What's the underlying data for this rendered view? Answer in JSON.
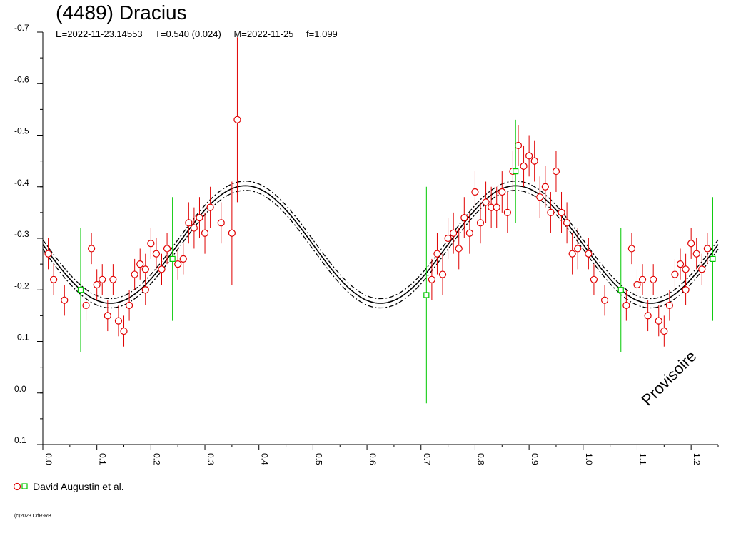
{
  "title": "(4489) Dracius",
  "params": {
    "epoch": "E=2022-11-23.14553",
    "period": "T=0.540 (0.024)",
    "mid": "M=2022-11-25",
    "factor": "f=1.099"
  },
  "stamp": "Provisoire",
  "legend": {
    "label": "David Augustin et al."
  },
  "copyright": "(c)2023 CdR-RB",
  "colors": {
    "red": "#e00000",
    "green": "#00c800",
    "curve": "#000000"
  },
  "chart_data": {
    "type": "scatter",
    "x_ticks": [
      "0.0",
      "0.1",
      "0.2",
      "0.3",
      "0.4",
      "0.5",
      "0.6",
      "0.7",
      "0.8",
      "0.9",
      "1.0",
      "1.1",
      "1.2"
    ],
    "y_ticks": [
      "-0.7",
      "-0.6",
      "-0.5",
      "-0.4",
      "-0.3",
      "-0.2",
      "-0.1",
      "0.0",
      "0.1"
    ],
    "xlim": [
      0.0,
      1.25
    ],
    "ylim": [
      0.1,
      -0.7
    ],
    "y_inverted": true,
    "fit": {
      "mean": -0.288,
      "amplitude": 0.114,
      "dashed_offset": 0.009,
      "peak_phase": 0.375,
      "period_phase": 0.5
    },
    "series": [
      {
        "name": "David Augustin et al.",
        "marker": "circle",
        "color": "red",
        "points": [
          [
            0.01,
            -0.27,
            0.03
          ],
          [
            0.02,
            -0.22,
            0.03
          ],
          [
            0.04,
            -0.18,
            0.03
          ],
          [
            0.08,
            -0.17,
            0.03
          ],
          [
            0.09,
            -0.28,
            0.03
          ],
          [
            0.1,
            -0.21,
            0.03
          ],
          [
            0.11,
            -0.22,
            0.03
          ],
          [
            0.12,
            -0.15,
            0.03
          ],
          [
            0.13,
            -0.22,
            0.03
          ],
          [
            0.14,
            -0.14,
            0.03
          ],
          [
            0.15,
            -0.12,
            0.03
          ],
          [
            0.16,
            -0.17,
            0.03
          ],
          [
            0.17,
            -0.23,
            0.03
          ],
          [
            0.18,
            -0.25,
            0.03
          ],
          [
            0.19,
            -0.24,
            0.03
          ],
          [
            0.19,
            -0.2,
            0.03
          ],
          [
            0.2,
            -0.29,
            0.03
          ],
          [
            0.21,
            -0.27,
            0.03
          ],
          [
            0.22,
            -0.24,
            0.03
          ],
          [
            0.23,
            -0.28,
            0.03
          ],
          [
            0.25,
            -0.25,
            0.03
          ],
          [
            0.26,
            -0.26,
            0.03
          ],
          [
            0.27,
            -0.33,
            0.04
          ],
          [
            0.28,
            -0.32,
            0.04
          ],
          [
            0.29,
            -0.34,
            0.04
          ],
          [
            0.3,
            -0.31,
            0.04
          ],
          [
            0.31,
            -0.36,
            0.04
          ],
          [
            0.33,
            -0.33,
            0.04
          ],
          [
            0.35,
            -0.31,
            0.1
          ],
          [
            0.36,
            -0.53,
            0.16
          ],
          [
            0.72,
            -0.22,
            0.04
          ],
          [
            0.73,
            -0.27,
            0.04
          ],
          [
            0.74,
            -0.23,
            0.04
          ],
          [
            0.75,
            -0.3,
            0.04
          ],
          [
            0.76,
            -0.31,
            0.04
          ],
          [
            0.77,
            -0.28,
            0.04
          ],
          [
            0.78,
            -0.34,
            0.04
          ],
          [
            0.79,
            -0.31,
            0.04
          ],
          [
            0.8,
            -0.39,
            0.04
          ],
          [
            0.81,
            -0.33,
            0.04
          ],
          [
            0.82,
            -0.37,
            0.04
          ],
          [
            0.83,
            -0.36,
            0.04
          ],
          [
            0.84,
            -0.36,
            0.04
          ],
          [
            0.85,
            -0.39,
            0.04
          ],
          [
            0.86,
            -0.35,
            0.04
          ],
          [
            0.87,
            -0.43,
            0.04
          ],
          [
            0.88,
            -0.48,
            0.04
          ],
          [
            0.89,
            -0.44,
            0.04
          ],
          [
            0.9,
            -0.46,
            0.04
          ],
          [
            0.91,
            -0.45,
            0.04
          ],
          [
            0.92,
            -0.38,
            0.04
          ],
          [
            0.93,
            -0.4,
            0.04
          ],
          [
            0.94,
            -0.35,
            0.04
          ],
          [
            0.95,
            -0.43,
            0.04
          ],
          [
            0.96,
            -0.35,
            0.04
          ],
          [
            0.97,
            -0.33,
            0.04
          ],
          [
            0.98,
            -0.27,
            0.04
          ],
          [
            0.99,
            -0.28,
            0.04
          ],
          [
            1.01,
            -0.27,
            0.03
          ],
          [
            1.02,
            -0.22,
            0.03
          ],
          [
            1.04,
            -0.18,
            0.03
          ],
          [
            1.08,
            -0.17,
            0.03
          ],
          [
            1.09,
            -0.28,
            0.03
          ],
          [
            1.1,
            -0.21,
            0.03
          ],
          [
            1.11,
            -0.22,
            0.03
          ],
          [
            1.12,
            -0.15,
            0.03
          ],
          [
            1.13,
            -0.22,
            0.03
          ],
          [
            1.14,
            -0.14,
            0.03
          ],
          [
            1.15,
            -0.12,
            0.03
          ],
          [
            1.16,
            -0.17,
            0.03
          ],
          [
            1.17,
            -0.23,
            0.03
          ],
          [
            1.18,
            -0.25,
            0.03
          ],
          [
            1.19,
            -0.24,
            0.03
          ],
          [
            1.19,
            -0.2,
            0.03
          ],
          [
            1.2,
            -0.29,
            0.03
          ],
          [
            1.21,
            -0.27,
            0.03
          ],
          [
            1.22,
            -0.24,
            0.03
          ],
          [
            1.23,
            -0.28,
            0.03
          ]
        ]
      },
      {
        "name": "",
        "marker": "square",
        "color": "green",
        "points": [
          [
            0.07,
            -0.2,
            0.12
          ],
          [
            0.24,
            -0.26,
            0.12
          ],
          [
            0.71,
            -0.19,
            0.21
          ],
          [
            0.875,
            -0.43,
            0.1
          ],
          [
            1.07,
            -0.2,
            0.12
          ],
          [
            1.24,
            -0.26,
            0.12
          ]
        ]
      }
    ]
  }
}
